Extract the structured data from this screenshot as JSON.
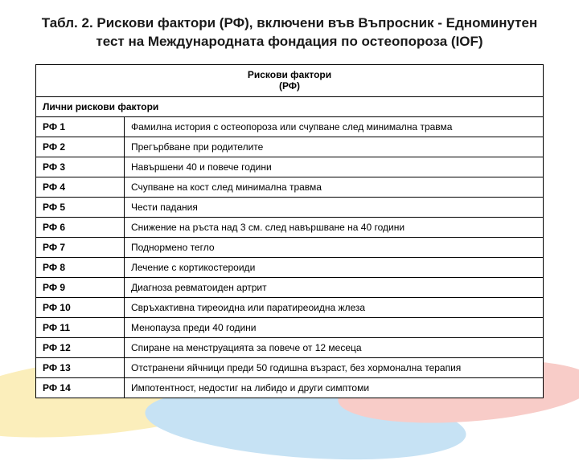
{
  "title": "Табл. 2. Рискови фактори (РФ), включени във Въпросник - Едноминутен тест на Международната фондация по остеопороза (IOF)",
  "table": {
    "header_line1": "Рискови фактори",
    "header_line2": "(РФ)",
    "section_label": "Лични рискови фактори",
    "rows": [
      {
        "code": "РФ 1",
        "desc": "Фамилна история с остеопороза или счупване след минимална травма"
      },
      {
        "code": "РФ 2",
        "desc": "Прегърбване при родителите"
      },
      {
        "code": "РФ 3",
        "desc": "Навършени 40 и повече години"
      },
      {
        "code": "РФ 4",
        "desc": "Счупване на кост след минимална травма"
      },
      {
        "code": "РФ 5",
        "desc": "Чести падания"
      },
      {
        "code": "РФ 6",
        "desc": "Снижение на ръста над 3 см. след навършване на 40 години"
      },
      {
        "code": "РФ 7",
        "desc": "Поднормено тегло"
      },
      {
        "code": "РФ 8",
        "desc": "Лечение с кортикостероиди"
      },
      {
        "code": "РФ 9",
        "desc": "Диагноза ревматоиден артрит"
      },
      {
        "code": "РФ 10",
        "desc": "Свръхактивна тиреоидна или паратиреоидна жлеза"
      },
      {
        "code": "РФ 11",
        "desc": "Менопауза преди 40 години"
      },
      {
        "code": "РФ 12",
        "desc": "Спиране на менструацията за повече от 12 месеца"
      },
      {
        "code": "РФ 13",
        "desc": "Отстранени яйчници преди 50 годишна възраст, без хормонална терапия"
      },
      {
        "code": "РФ 14",
        "desc": "Импотентност, недостиг на либидо и други симптоми"
      }
    ]
  }
}
